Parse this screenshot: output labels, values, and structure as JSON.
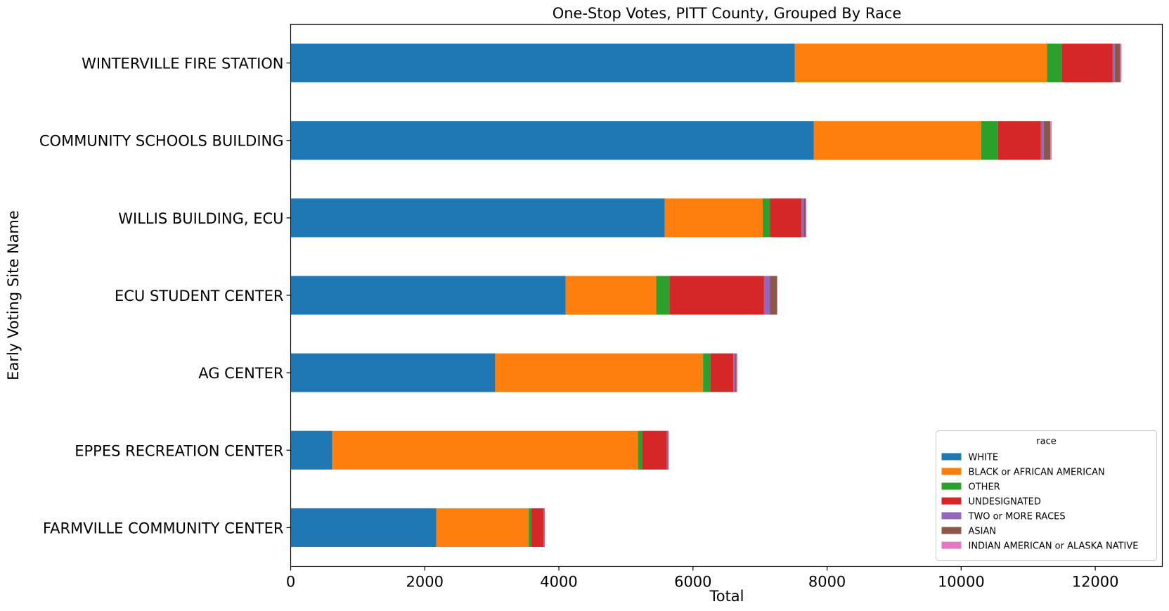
{
  "chart_data": {
    "type": "bar",
    "orientation": "horizontal",
    "stacked": true,
    "title": "One-Stop Votes, PITT County, Grouped By Race",
    "xlabel": "Total",
    "ylabel": "Early Voting Site Name",
    "xlim": [
      0,
      13000
    ],
    "xticks": [
      0,
      2000,
      4000,
      6000,
      8000,
      10000,
      12000
    ],
    "grid": false,
    "legend": {
      "title": "race",
      "placement": "lower-right"
    },
    "categories": [
      "WINTERVILLE FIRE STATION",
      "COMMUNITY SCHOOLS BUILDING",
      "WILLIS BUILDING, ECU",
      "ECU STUDENT CENTER",
      "AG CENTER",
      "EPPES RECREATION CENTER",
      "FARMVILLE COMMUNITY CENTER"
    ],
    "series": [
      {
        "name": "WHITE",
        "color": "#1f77b4",
        "values": [
          7520,
          7800,
          5580,
          4100,
          3050,
          620,
          2170
        ]
      },
      {
        "name": "BLACK or AFRICAN AMERICAN",
        "color": "#ff7f0e",
        "values": [
          3760,
          2500,
          1460,
          1350,
          3100,
          4560,
          1380
        ]
      },
      {
        "name": "OTHER",
        "color": "#2ca02c",
        "values": [
          220,
          250,
          110,
          200,
          110,
          60,
          40
        ]
      },
      {
        "name": "UNDESIGNATED",
        "color": "#d62728",
        "values": [
          760,
          640,
          470,
          1410,
          340,
          370,
          180
        ]
      },
      {
        "name": "TWO or MORE RACES",
        "color": "#9467bd",
        "values": [
          30,
          40,
          30,
          90,
          30,
          10,
          5
        ]
      },
      {
        "name": "ASIAN",
        "color": "#8c564b",
        "values": [
          80,
          100,
          30,
          100,
          20,
          10,
          10
        ]
      },
      {
        "name": "INDIAN AMERICAN or ALASKA NATIVE",
        "color": "#e377c2",
        "values": [
          20,
          20,
          10,
          10,
          10,
          10,
          5
        ]
      }
    ]
  }
}
